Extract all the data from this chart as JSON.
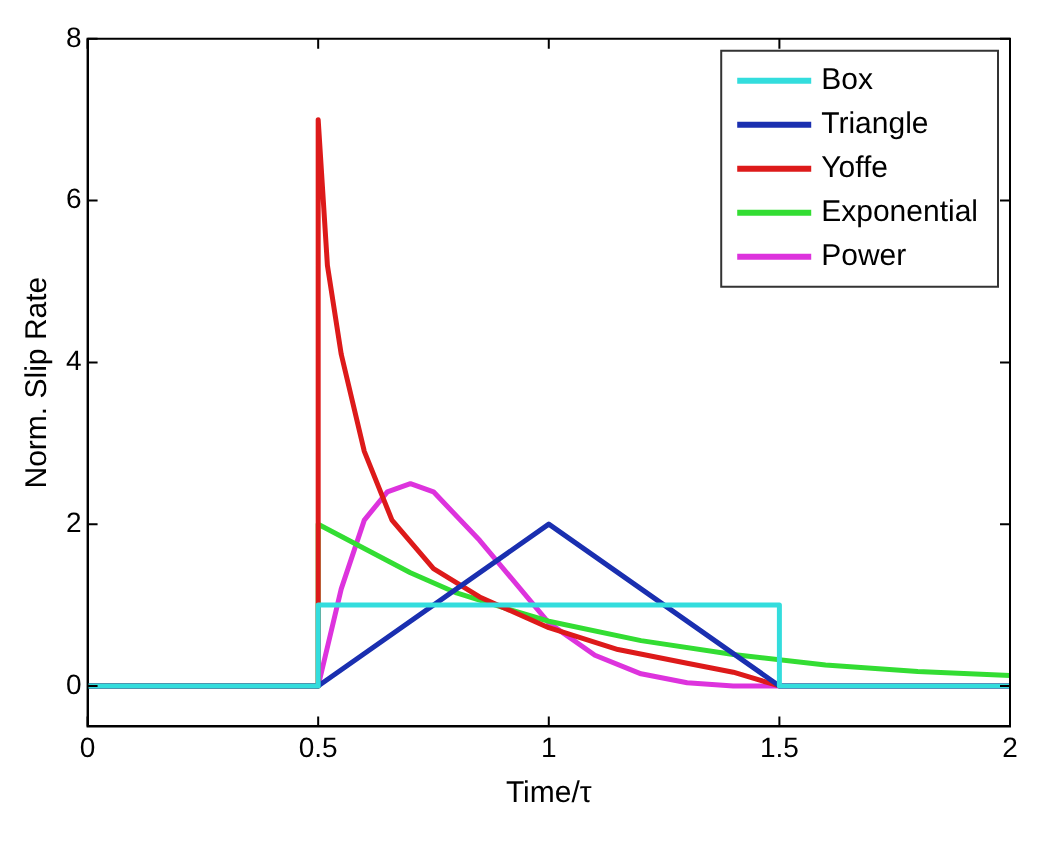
{
  "chart_data": {
    "type": "line",
    "xlabel": "Time/τ",
    "ylabel": "Norm. Slip Rate",
    "xlim": [
      0,
      2
    ],
    "ylim": [
      -0.5,
      8
    ],
    "xticks": [
      0,
      0.5,
      1,
      1.5,
      2
    ],
    "yticks": [
      0,
      2,
      4,
      6,
      8
    ],
    "grid": false,
    "legend": "top right",
    "marker": "none",
    "line_style": "solid",
    "series": [
      {
        "name": "Box",
        "color": "#33dddd",
        "x": [
          0,
          0.5,
          0.5,
          1.5,
          1.5,
          2
        ],
        "values": [
          0,
          0,
          1,
          1,
          0,
          0
        ]
      },
      {
        "name": "Triangle",
        "color": "#1a2fb0",
        "x": [
          0,
          0.5,
          1,
          1.5,
          2
        ],
        "values": [
          0,
          0,
          2,
          0,
          0
        ]
      },
      {
        "name": "Yoffe",
        "color": "#dd1a1a",
        "x": [
          0,
          0.5,
          0.5,
          0.52,
          0.55,
          0.6,
          0.66,
          0.75,
          0.85,
          1,
          1.15,
          1.3,
          1.4,
          1.5,
          2
        ],
        "values": [
          0,
          0,
          7,
          5.2,
          4.1,
          2.9,
          2.05,
          1.45,
          1.1,
          0.72,
          0.45,
          0.28,
          0.17,
          0,
          0
        ]
      },
      {
        "name": "Exponential",
        "color": "#33dd33",
        "x": [
          0,
          0.5,
          0.5,
          0.6,
          0.7,
          0.8,
          0.9,
          1,
          1.2,
          1.4,
          1.6,
          1.8,
          2
        ],
        "values": [
          0,
          0,
          2,
          1.7,
          1.4,
          1.15,
          0.97,
          0.8,
          0.56,
          0.39,
          0.26,
          0.18,
          0.13
        ]
      },
      {
        "name": "Power",
        "color": "#dd33dd",
        "x": [
          0,
          0.5,
          0.55,
          0.6,
          0.65,
          0.7,
          0.75,
          0.85,
          1,
          1.1,
          1.2,
          1.3,
          1.4,
          1.5,
          2
        ],
        "values": [
          0,
          0,
          1.2,
          2.05,
          2.4,
          2.5,
          2.4,
          1.8,
          0.78,
          0.38,
          0.15,
          0.04,
          0,
          0,
          0
        ]
      }
    ]
  }
}
